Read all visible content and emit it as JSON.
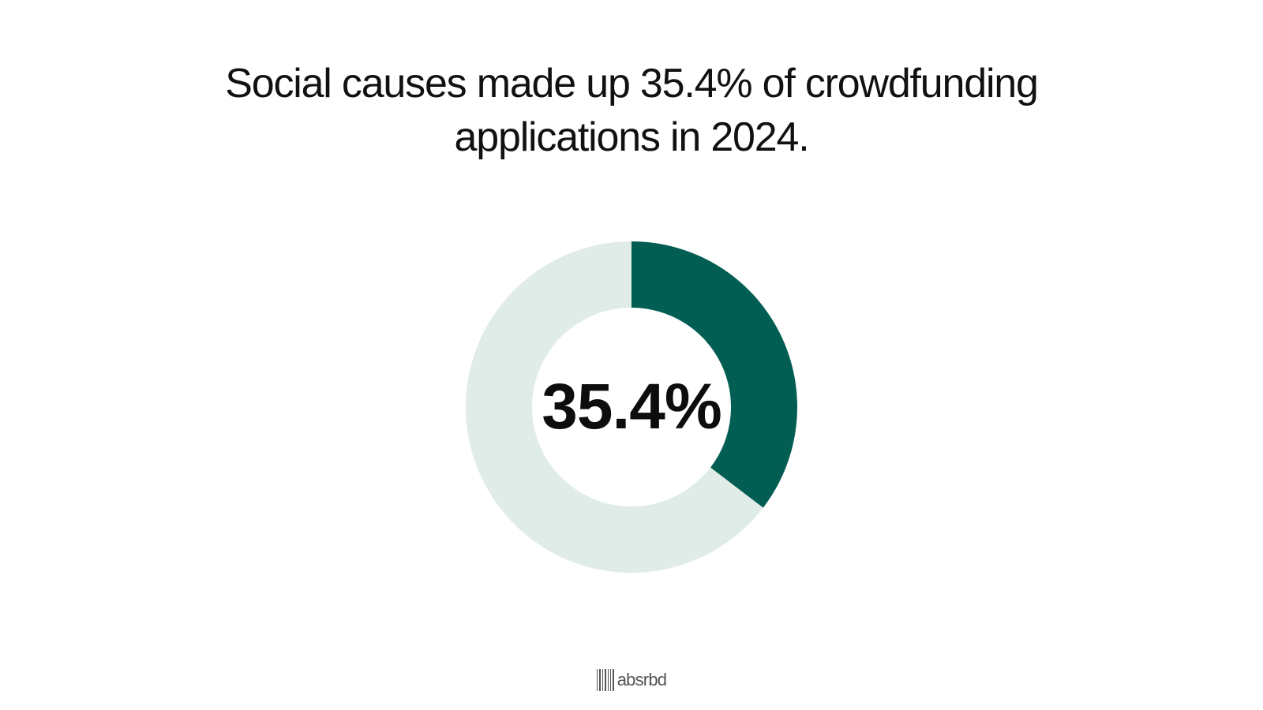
{
  "title": "Social causes made up 35.4% of crowdfunding applications in 2024.",
  "chart_data": {
    "type": "pie",
    "slices": [
      {
        "label": "",
        "value": 35.4,
        "color": "#025e53"
      },
      {
        "label": "",
        "value": 64.6,
        "color": "#e0ece8"
      }
    ],
    "center_label": "35.4%",
    "legend": "none"
  },
  "logo": {
    "text": "absrbd",
    "icon": "barcode-icon"
  }
}
